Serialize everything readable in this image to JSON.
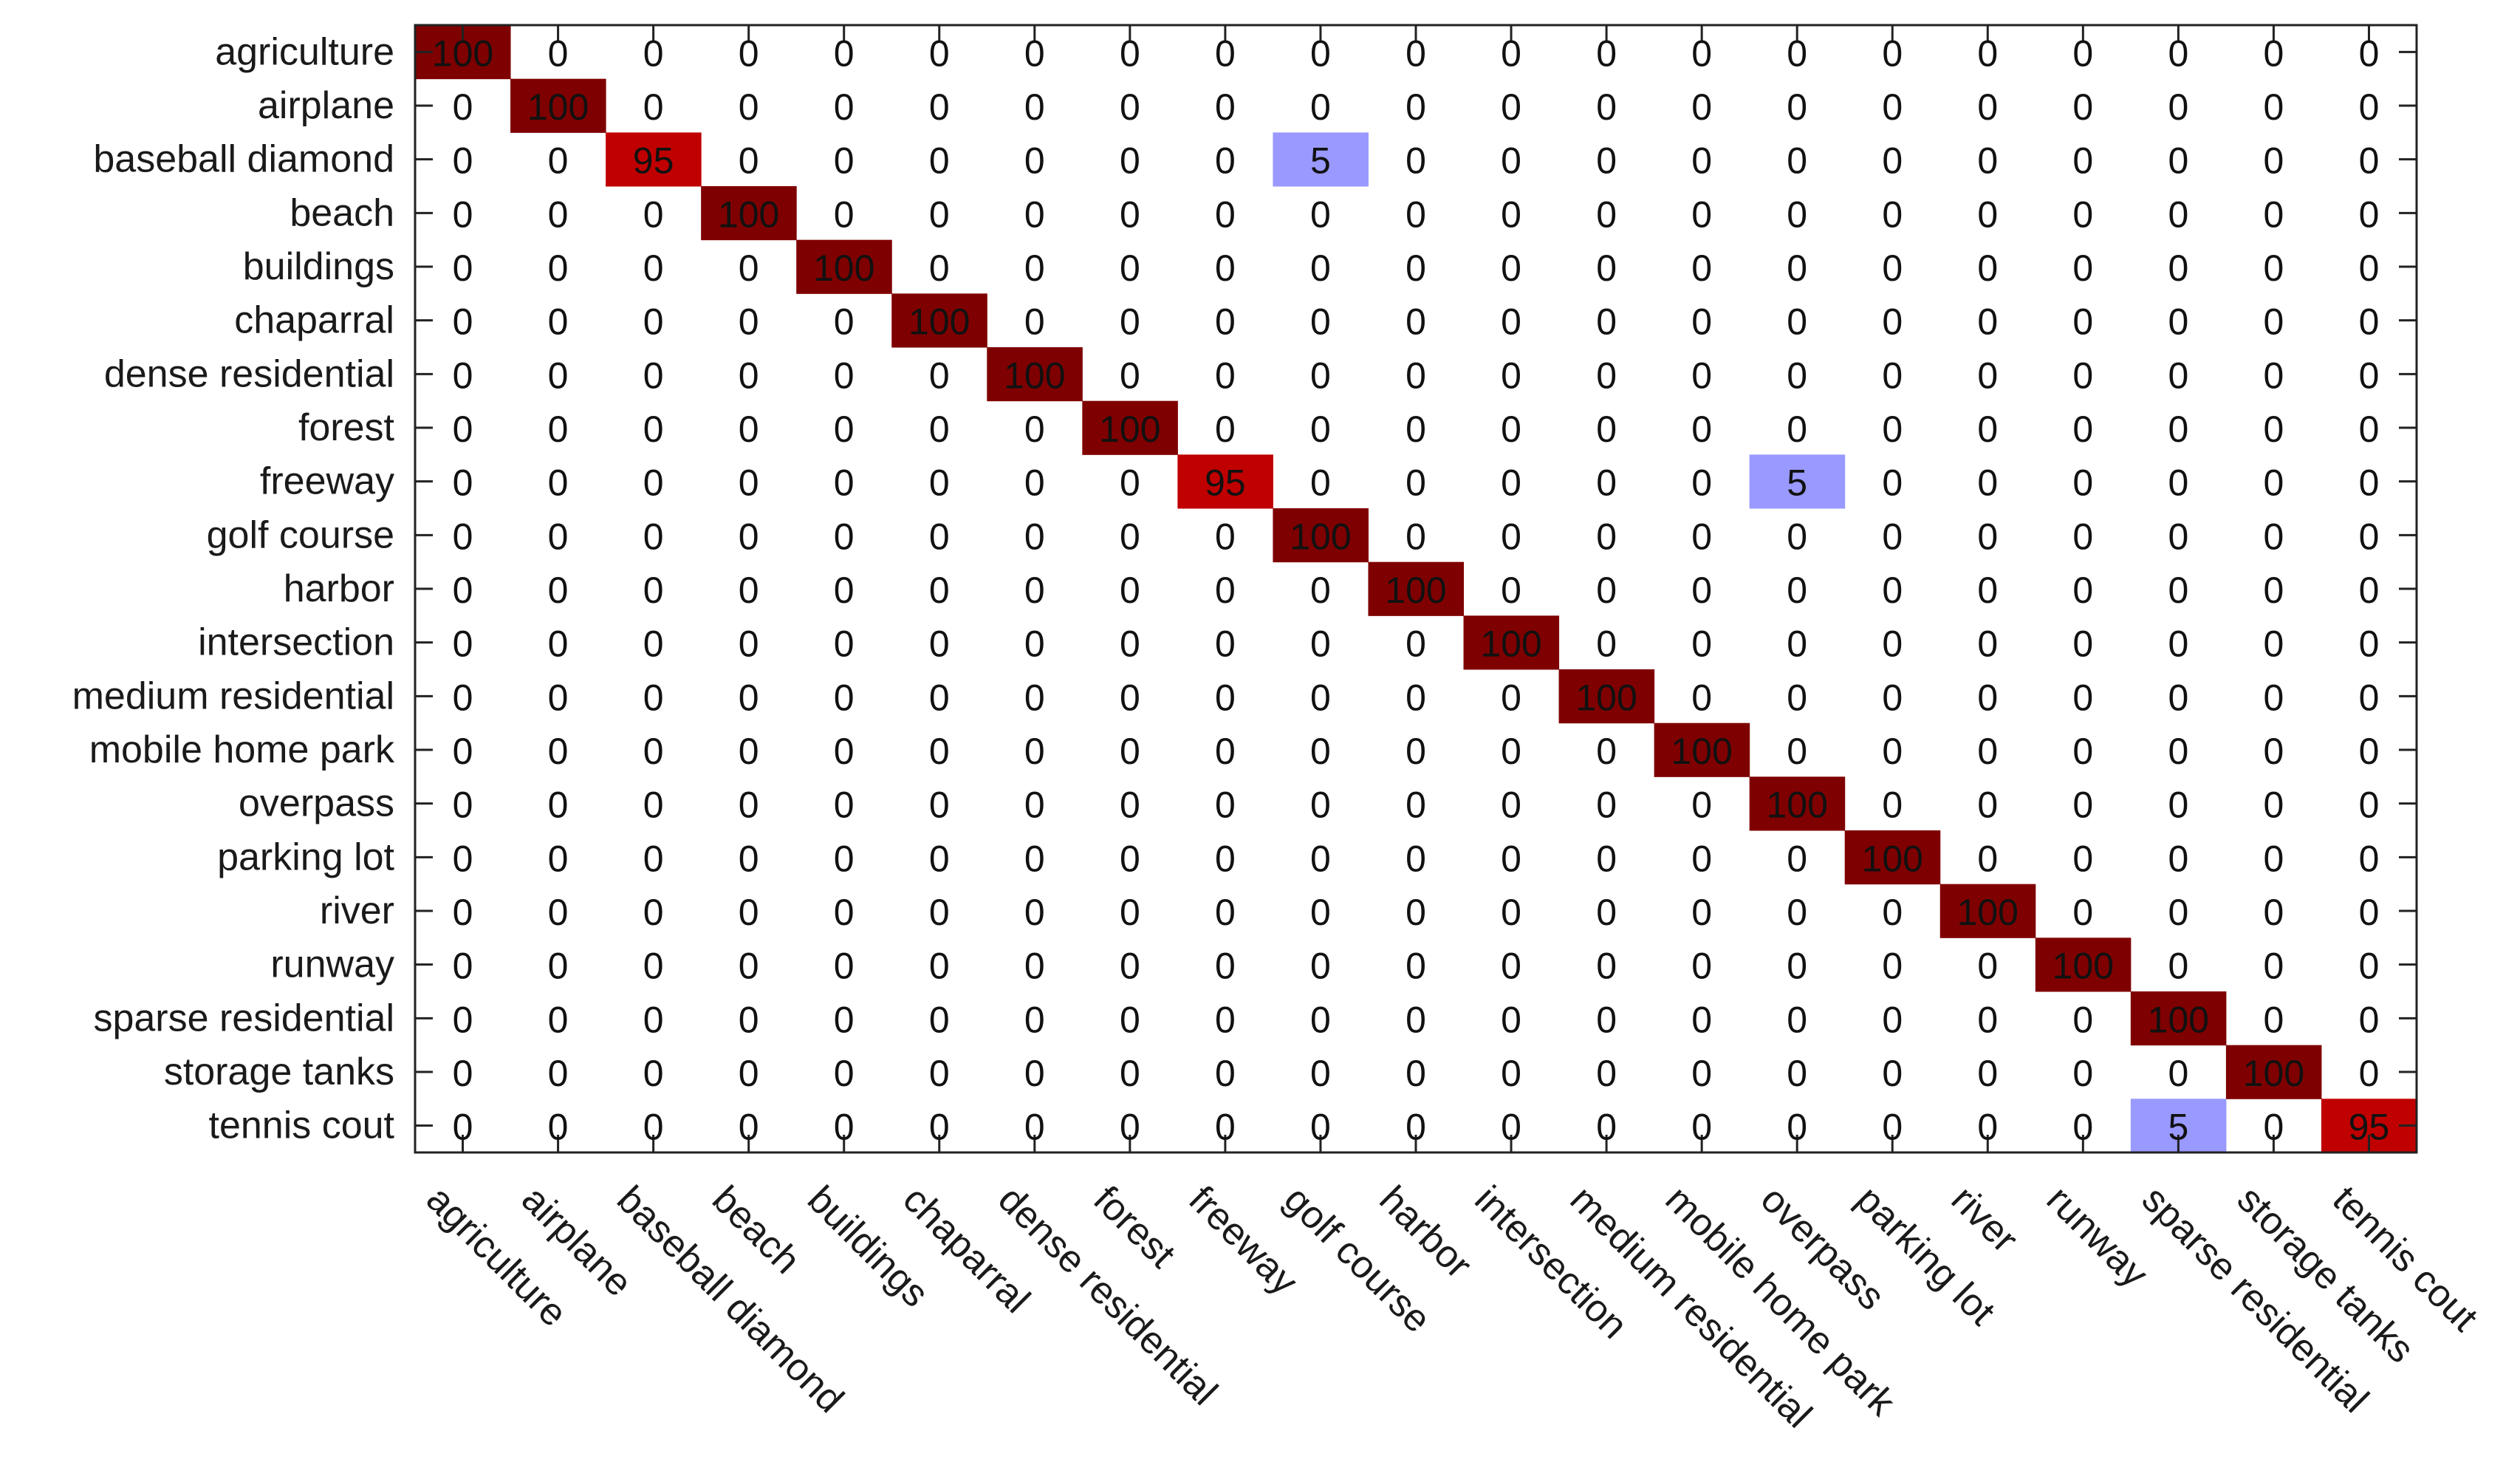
{
  "chart_data": {
    "type": "heatmap",
    "title": "",
    "xlabel": "",
    "ylabel": "",
    "grid": false,
    "row_labels": [
      "agriculture",
      "airplane",
      "baseball diamond",
      "beach",
      "buildings",
      "chaparral",
      "dense residential",
      "forest",
      "freeway",
      "golf course",
      "harbor",
      "intersection",
      "medium residential",
      "mobile home park",
      "overpass",
      "parking lot",
      "river",
      "runway",
      "sparse residential",
      "storage tanks",
      "tennis cout"
    ],
    "col_labels": [
      "agriculture",
      "airplane",
      "baseball diamond",
      "beach",
      "buildings",
      "chaparral",
      "dense residential",
      "forest",
      "freeway",
      "golf course",
      "harbor",
      "intersection",
      "medium residential",
      "mobile home park",
      "overpass",
      "parking lot",
      "river",
      "runway",
      "sparse residential",
      "storage tanks",
      "tennis cout"
    ],
    "values": [
      [
        100,
        0,
        0,
        0,
        0,
        0,
        0,
        0,
        0,
        0,
        0,
        0,
        0,
        0,
        0,
        0,
        0,
        0,
        0,
        0,
        0
      ],
      [
        0,
        100,
        0,
        0,
        0,
        0,
        0,
        0,
        0,
        0,
        0,
        0,
        0,
        0,
        0,
        0,
        0,
        0,
        0,
        0,
        0
      ],
      [
        0,
        0,
        95,
        0,
        0,
        0,
        0,
        0,
        0,
        5,
        0,
        0,
        0,
        0,
        0,
        0,
        0,
        0,
        0,
        0,
        0
      ],
      [
        0,
        0,
        0,
        100,
        0,
        0,
        0,
        0,
        0,
        0,
        0,
        0,
        0,
        0,
        0,
        0,
        0,
        0,
        0,
        0,
        0
      ],
      [
        0,
        0,
        0,
        0,
        100,
        0,
        0,
        0,
        0,
        0,
        0,
        0,
        0,
        0,
        0,
        0,
        0,
        0,
        0,
        0,
        0
      ],
      [
        0,
        0,
        0,
        0,
        0,
        100,
        0,
        0,
        0,
        0,
        0,
        0,
        0,
        0,
        0,
        0,
        0,
        0,
        0,
        0,
        0
      ],
      [
        0,
        0,
        0,
        0,
        0,
        0,
        100,
        0,
        0,
        0,
        0,
        0,
        0,
        0,
        0,
        0,
        0,
        0,
        0,
        0,
        0
      ],
      [
        0,
        0,
        0,
        0,
        0,
        0,
        0,
        100,
        0,
        0,
        0,
        0,
        0,
        0,
        0,
        0,
        0,
        0,
        0,
        0,
        0
      ],
      [
        0,
        0,
        0,
        0,
        0,
        0,
        0,
        0,
        95,
        0,
        0,
        0,
        0,
        0,
        5,
        0,
        0,
        0,
        0,
        0,
        0
      ],
      [
        0,
        0,
        0,
        0,
        0,
        0,
        0,
        0,
        0,
        100,
        0,
        0,
        0,
        0,
        0,
        0,
        0,
        0,
        0,
        0,
        0
      ],
      [
        0,
        0,
        0,
        0,
        0,
        0,
        0,
        0,
        0,
        0,
        100,
        0,
        0,
        0,
        0,
        0,
        0,
        0,
        0,
        0,
        0
      ],
      [
        0,
        0,
        0,
        0,
        0,
        0,
        0,
        0,
        0,
        0,
        0,
        100,
        0,
        0,
        0,
        0,
        0,
        0,
        0,
        0,
        0
      ],
      [
        0,
        0,
        0,
        0,
        0,
        0,
        0,
        0,
        0,
        0,
        0,
        0,
        100,
        0,
        0,
        0,
        0,
        0,
        0,
        0,
        0
      ],
      [
        0,
        0,
        0,
        0,
        0,
        0,
        0,
        0,
        0,
        0,
        0,
        0,
        0,
        100,
        0,
        0,
        0,
        0,
        0,
        0,
        0
      ],
      [
        0,
        0,
        0,
        0,
        0,
        0,
        0,
        0,
        0,
        0,
        0,
        0,
        0,
        0,
        100,
        0,
        0,
        0,
        0,
        0,
        0
      ],
      [
        0,
        0,
        0,
        0,
        0,
        0,
        0,
        0,
        0,
        0,
        0,
        0,
        0,
        0,
        0,
        100,
        0,
        0,
        0,
        0,
        0
      ],
      [
        0,
        0,
        0,
        0,
        0,
        0,
        0,
        0,
        0,
        0,
        0,
        0,
        0,
        0,
        0,
        0,
        100,
        0,
        0,
        0,
        0
      ],
      [
        0,
        0,
        0,
        0,
        0,
        0,
        0,
        0,
        0,
        0,
        0,
        0,
        0,
        0,
        0,
        0,
        0,
        100,
        0,
        0,
        0
      ],
      [
        0,
        0,
        0,
        0,
        0,
        0,
        0,
        0,
        0,
        0,
        0,
        0,
        0,
        0,
        0,
        0,
        0,
        0,
        100,
        0,
        0
      ],
      [
        0,
        0,
        0,
        0,
        0,
        0,
        0,
        0,
        0,
        0,
        0,
        0,
        0,
        0,
        0,
        0,
        0,
        0,
        0,
        100,
        0
      ],
      [
        0,
        0,
        0,
        0,
        0,
        0,
        0,
        0,
        0,
        0,
        0,
        0,
        0,
        0,
        0,
        0,
        0,
        0,
        5,
        0,
        95
      ]
    ],
    "color_scale": {
      "high": "#7f0000",
      "mid_high": "#c00000",
      "low": "#9999ff",
      "zero": "#ffffff"
    },
    "axis_color": "#222222"
  }
}
